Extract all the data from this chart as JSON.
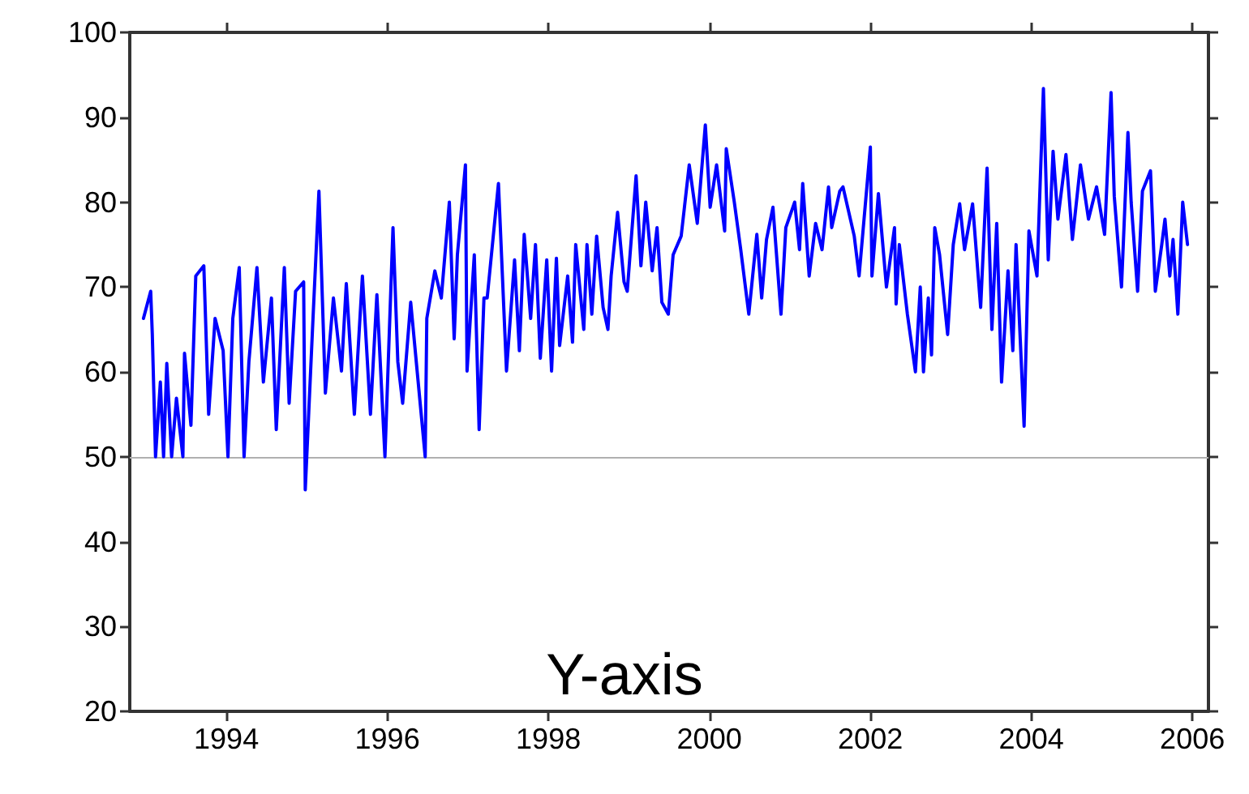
{
  "chart_data": {
    "type": "line",
    "x": [
      1992.97,
      1993.06,
      1993.08,
      1993.12,
      1993.18,
      1993.22,
      1993.26,
      1993.32,
      1993.38,
      1993.46,
      1993.48,
      1993.56,
      1993.62,
      1993.72,
      1993.78,
      1993.86,
      1993.96,
      1994.02,
      1994.08,
      1994.16,
      1994.22,
      1994.28,
      1994.38,
      1994.46,
      1994.56,
      1994.62,
      1994.72,
      1994.78,
      1994.86,
      1994.96,
      1994.98,
      1995.07,
      1995.15,
      1995.23,
      1995.33,
      1995.43,
      1995.49,
      1995.59,
      1995.69,
      1995.79,
      1995.87,
      1995.97,
      1996.07,
      1996.13,
      1996.19,
      1996.29,
      1996.37,
      1996.47,
      1996.49,
      1996.59,
      1996.67,
      1996.77,
      1996.83,
      1996.87,
      1996.97,
      1996.99,
      1997.08,
      1997.14,
      1997.2,
      1997.24,
      1997.38,
      1997.48,
      1997.58,
      1997.64,
      1997.7,
      1997.78,
      1997.84,
      1997.9,
      1997.98,
      1998.04,
      1998.1,
      1998.14,
      1998.24,
      1998.3,
      1998.34,
      1998.44,
      1998.48,
      1998.54,
      1998.6,
      1998.68,
      1998.74,
      1998.78,
      1998.86,
      1998.94,
      1998.98,
      1999.09,
      1999.15,
      1999.21,
      1999.29,
      1999.35,
      1999.41,
      1999.49,
      1999.55,
      1999.65,
      1999.75,
      1999.85,
      1999.95,
      2000.01,
      2000.09,
      2000.19,
      2000.21,
      2000.31,
      2000.39,
      2000.49,
      2000.59,
      2000.65,
      2000.71,
      2000.79,
      2000.89,
      2000.95,
      2001.06,
      2001.12,
      2001.16,
      2001.24,
      2001.32,
      2001.4,
      2001.48,
      2001.52,
      2001.62,
      2001.66,
      2001.8,
      2001.86,
      2002.0,
      2002.02,
      2002.1,
      2002.2,
      2002.3,
      2002.32,
      2002.36,
      2002.46,
      2002.56,
      2002.62,
      2002.66,
      2002.72,
      2002.76,
      2002.8,
      2002.86,
      2002.96,
      2003.03,
      2003.11,
      2003.17,
      2003.27,
      2003.37,
      2003.45,
      2003.51,
      2003.57,
      2003.63,
      2003.71,
      2003.77,
      2003.81,
      2003.91,
      2003.97,
      2004.07,
      2004.15,
      2004.21,
      2004.27,
      2004.33,
      2004.43,
      2004.51,
      2004.61,
      2004.71,
      2004.81,
      2004.91,
      2004.99,
      2005.03,
      2005.12,
      2005.2,
      2005.24,
      2005.32,
      2005.38,
      2005.48,
      2005.54,
      2005.62,
      2005.66,
      2005.72,
      2005.76,
      2005.82,
      2005.88,
      2005.94
    ],
    "series": [
      {
        "color": "#0000ff",
        "values": [
          66.3,
          69.5,
          64.4,
          50,
          58.8,
          50,
          61,
          50,
          56.9,
          50,
          62.2,
          53.7,
          71.3,
          72.5,
          55,
          66.3,
          62.5,
          50,
          66.3,
          72.3,
          50,
          61.2,
          72.3,
          58.8,
          68.7,
          53.2,
          72.3,
          56.3,
          69.5,
          70.6,
          46.1,
          65,
          81.3,
          57.5,
          68.7,
          60.1,
          70.4,
          55,
          71.3,
          55,
          69.1,
          50,
          77,
          61.2,
          56.3,
          68.2,
          60.1,
          50,
          66.3,
          71.9,
          68.7,
          80,
          63.9,
          73.8,
          84.4,
          60.1,
          73.8,
          53.2,
          68.7,
          68.7,
          82.2,
          60.1,
          73.2,
          62.5,
          76.2,
          66.3,
          75,
          61.6,
          73.2,
          60.1,
          73.4,
          63.1,
          71.3,
          63.5,
          75,
          65,
          75,
          66.8,
          76,
          67.6,
          65,
          71.3,
          78.8,
          70.6,
          69.5,
          83.1,
          72.5,
          80,
          71.9,
          77,
          68.2,
          66.8,
          73.8,
          76,
          84.4,
          77.5,
          89.1,
          79.4,
          84.4,
          76.6,
          86.3,
          80,
          74.4,
          66.8,
          76.2,
          68.7,
          75.6,
          79.4,
          66.8,
          77,
          80,
          74.4,
          82.2,
          71.3,
          77.5,
          74.4,
          81.8,
          77,
          81.3,
          81.8,
          76,
          71.3,
          86.5,
          71.3,
          81,
          70,
          77,
          68,
          75,
          66.8,
          60,
          70,
          60,
          68.7,
          62,
          77,
          73.8,
          64.4,
          75,
          79.8,
          74.4,
          79.8,
          67.6,
          84,
          65,
          77.5,
          58.8,
          71.9,
          62.5,
          75,
          53.6,
          76.6,
          71.3,
          93.4,
          73.2,
          86,
          78,
          85.6,
          75.6,
          84.4,
          78,
          81.8,
          76.2,
          92.9,
          80.7,
          70,
          88.2,
          80,
          69.5,
          81.3,
          83.7,
          69.5,
          75,
          78,
          71.3,
          75.6,
          66.8,
          80,
          75
        ]
      }
    ],
    "xlim": [
      1992.8,
      2006.2
    ],
    "xticks": [
      1994,
      1996,
      1998,
      2000,
      2002,
      2004,
      2006
    ],
    "ylim": [
      20,
      100
    ],
    "yticks": [
      20,
      30,
      40,
      50,
      60,
      70,
      80,
      90,
      100
    ],
    "ref_lines": [
      {
        "axis": "y",
        "value": 50,
        "color": "#b0b0b0"
      }
    ],
    "annotations": [
      "Y-axis"
    ],
    "marker": "none",
    "line_style": "solid",
    "grid": false
  }
}
